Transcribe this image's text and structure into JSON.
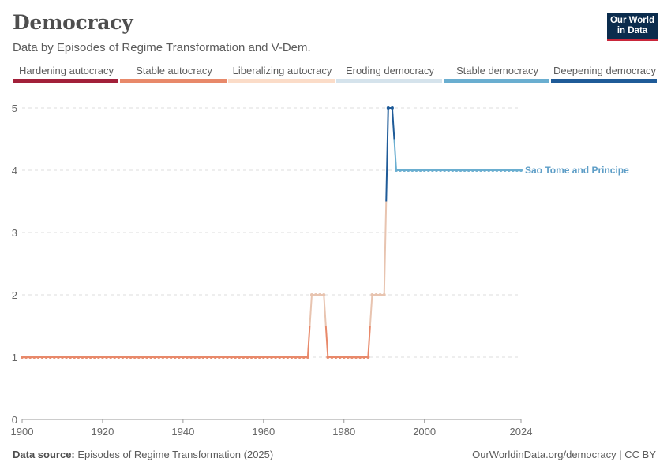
{
  "header": {
    "title": "Democracy",
    "subtitle": "Data by Episodes of Regime Transformation and V-Dem.",
    "logo_line1": "Our World",
    "logo_line2": "in Data"
  },
  "legend": [
    {
      "label": "Hardening autocracy",
      "color": "#a2203a"
    },
    {
      "label": "Stable autocracy",
      "color": "#e8896a"
    },
    {
      "label": "Liberalizing autocracy",
      "color": "#fbdcc8"
    },
    {
      "label": "Eroding democracy",
      "color": "#d5e3ec"
    },
    {
      "label": "Stable democracy",
      "color": "#6aaed0"
    },
    {
      "label": "Deepening democracy",
      "color": "#1f5b98"
    }
  ],
  "chart_data": {
    "type": "line",
    "x_ticks": [
      1900,
      1920,
      1940,
      1960,
      1980,
      2000,
      2024
    ],
    "y_ticks": [
      0,
      1,
      2,
      3,
      4,
      5
    ],
    "xlim": [
      1900,
      2024
    ],
    "ylim": [
      0,
      5
    ],
    "grid": "horizontal dashed",
    "series": [
      {
        "name": "Sao Tome and Principe",
        "color": "#6aaed0",
        "segments": [
          {
            "category": "Stable autocracy",
            "color": "#e8896a",
            "x": [
              1900,
              1971
            ],
            "y": 1
          },
          {
            "category": "Liberalizing autocracy",
            "color": "#e8c4b0",
            "x": [
              1972,
              1975
            ],
            "y": 2
          },
          {
            "category": "Stable autocracy",
            "color": "#e8896a",
            "x": [
              1976,
              1986
            ],
            "y": 1
          },
          {
            "category": "Liberalizing autocracy",
            "color": "#e8c4b0",
            "x": [
              1987,
              1990
            ],
            "y": 2
          },
          {
            "category": "Deepening democracy",
            "color": "#1f5b98",
            "x": [
              1991,
              1992
            ],
            "y": 5
          },
          {
            "category": "Stable democracy",
            "color": "#6aaed0",
            "x": [
              1993,
              2024
            ],
            "y": 4
          }
        ]
      }
    ]
  },
  "footer": {
    "source_label": "Data source:",
    "source_text": "Episodes of Regime Transformation (2025)",
    "credit": "OurWorldinData.org/democracy | CC BY"
  }
}
